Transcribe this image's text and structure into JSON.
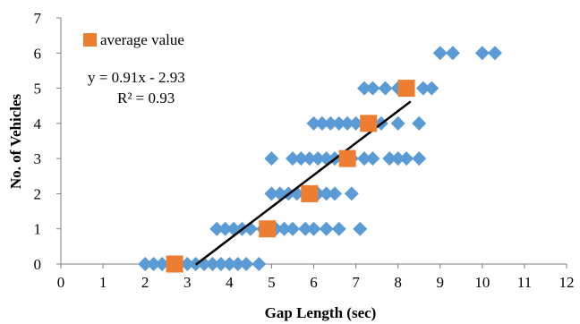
{
  "chart_data": {
    "type": "scatter",
    "title": "",
    "xlabel": "Gap Length (sec)",
    "ylabel": "No. of Vehicles",
    "xlim": [
      0,
      12
    ],
    "ylim": [
      0,
      7
    ],
    "x_ticks": [
      0,
      1,
      2,
      3,
      4,
      5,
      6,
      7,
      8,
      9,
      10,
      11,
      12
    ],
    "y_ticks": [
      0,
      1,
      2,
      3,
      4,
      5,
      6,
      7
    ],
    "grid": "none",
    "legend_position": "top-left",
    "legend": [
      {
        "label": "average value",
        "color": "#ED7D31",
        "marker": "square"
      }
    ],
    "series": [
      {
        "marker": "diamond",
        "color": "#5B9BD5",
        "points": [
          [
            2.0,
            0
          ],
          [
            2.2,
            0
          ],
          [
            2.4,
            0
          ],
          [
            2.7,
            0
          ],
          [
            3.0,
            0
          ],
          [
            3.2,
            0
          ],
          [
            3.4,
            0
          ],
          [
            3.6,
            0
          ],
          [
            3.8,
            0
          ],
          [
            4.0,
            0
          ],
          [
            4.2,
            0
          ],
          [
            4.4,
            0
          ],
          [
            4.7,
            0
          ],
          [
            3.7,
            1
          ],
          [
            3.9,
            1
          ],
          [
            4.1,
            1
          ],
          [
            4.3,
            1
          ],
          [
            4.5,
            1
          ],
          [
            4.8,
            1
          ],
          [
            5.1,
            1
          ],
          [
            5.3,
            1
          ],
          [
            5.5,
            1
          ],
          [
            5.8,
            1
          ],
          [
            6.0,
            1
          ],
          [
            6.3,
            1
          ],
          [
            6.6,
            1
          ],
          [
            7.1,
            1
          ],
          [
            5.0,
            2
          ],
          [
            5.2,
            2
          ],
          [
            5.4,
            2
          ],
          [
            5.6,
            2
          ],
          [
            5.8,
            2
          ],
          [
            6.1,
            2
          ],
          [
            6.3,
            2
          ],
          [
            6.5,
            2
          ],
          [
            6.9,
            2
          ],
          [
            5.0,
            3
          ],
          [
            5.5,
            3
          ],
          [
            5.7,
            3
          ],
          [
            5.9,
            3
          ],
          [
            6.1,
            3
          ],
          [
            6.3,
            3
          ],
          [
            6.5,
            3
          ],
          [
            6.9,
            3
          ],
          [
            7.2,
            3
          ],
          [
            7.4,
            3
          ],
          [
            7.8,
            3
          ],
          [
            8.0,
            3
          ],
          [
            8.2,
            3
          ],
          [
            8.5,
            3
          ],
          [
            6.0,
            4
          ],
          [
            6.2,
            4
          ],
          [
            6.4,
            4
          ],
          [
            6.6,
            4
          ],
          [
            6.8,
            4
          ],
          [
            7.0,
            4
          ],
          [
            7.6,
            4
          ],
          [
            8.0,
            4
          ],
          [
            8.5,
            4
          ],
          [
            7.2,
            5
          ],
          [
            7.4,
            5
          ],
          [
            7.7,
            5
          ],
          [
            8.0,
            5
          ],
          [
            8.2,
            5
          ],
          [
            8.6,
            5
          ],
          [
            8.8,
            5
          ],
          [
            9.0,
            6
          ],
          [
            9.3,
            6
          ],
          [
            10.0,
            6
          ],
          [
            10.3,
            6
          ]
        ]
      },
      {
        "name": "average value",
        "marker": "square",
        "color": "#ED7D31",
        "points": [
          [
            2.7,
            0
          ],
          [
            4.9,
            1
          ],
          [
            5.9,
            2
          ],
          [
            6.8,
            3
          ],
          [
            7.3,
            4
          ],
          [
            8.2,
            5
          ]
        ]
      }
    ],
    "trendline": {
      "slope": 0.91,
      "intercept": -2.93,
      "x_range": [
        3.2,
        8.3
      ],
      "color": "#000000",
      "equation": "y = 0.91x - 2.93",
      "r_squared": "R² = 0.93"
    }
  }
}
